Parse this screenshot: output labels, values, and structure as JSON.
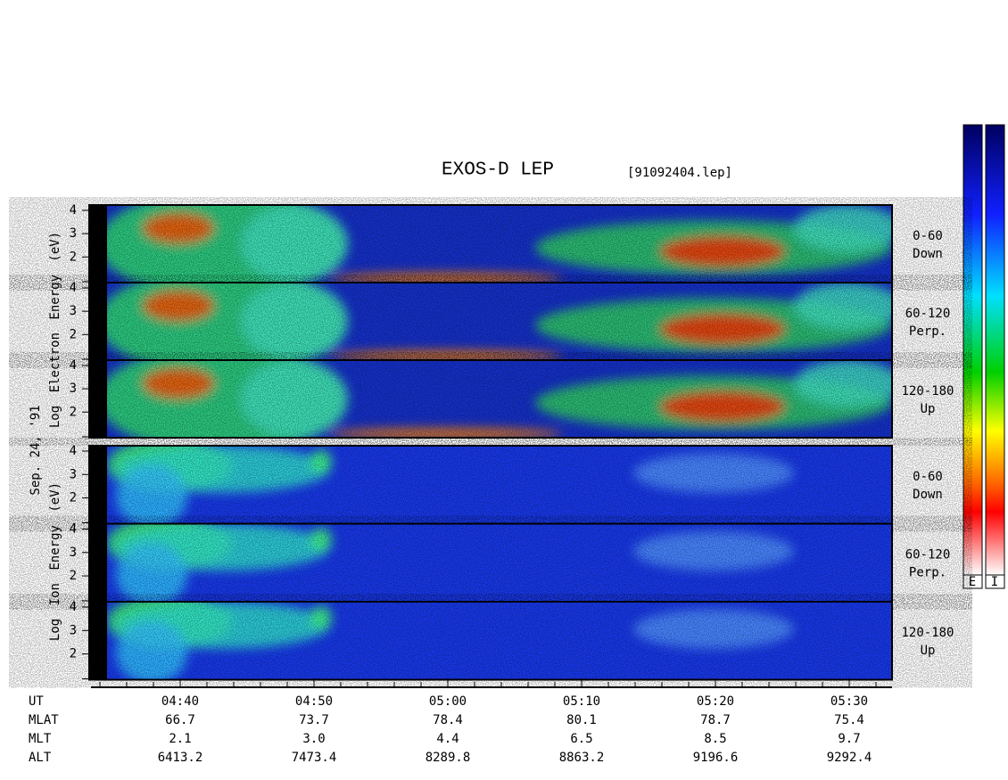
{
  "title": "EXOS-D LEP",
  "file_id": "[91092404.lep]",
  "date": "Sep. 24, '91",
  "y_ticks": [
    "2",
    "3",
    "4"
  ],
  "electron": {
    "axis_label": "Log Electron Energy (eV)",
    "panels": [
      {
        "pitch": "0-60",
        "direction": "Down"
      },
      {
        "pitch": "60-120",
        "direction": "Perp."
      },
      {
        "pitch": "120-180",
        "direction": "Up"
      }
    ]
  },
  "ion": {
    "axis_label": "Log Ion Energy (eV)",
    "panels": [
      {
        "pitch": "0-60",
        "direction": "Down"
      },
      {
        "pitch": "60-120",
        "direction": "Perp."
      },
      {
        "pitch": "120-180",
        "direction": "Up"
      }
    ]
  },
  "x_axis": {
    "rows": [
      {
        "label": "UT",
        "values": [
          "04:40",
          "04:50",
          "05:00",
          "05:10",
          "05:20",
          "05:30"
        ]
      },
      {
        "label": "MLAT",
        "values": [
          "66.7",
          "73.7",
          "78.4",
          "80.1",
          "78.7",
          "75.4"
        ]
      },
      {
        "label": "MLT",
        "values": [
          "2.1",
          "3.0",
          "4.4",
          "6.5",
          "8.5",
          "9.7"
        ]
      },
      {
        "label": "ALT",
        "values": [
          "6413.2",
          "7473.4",
          "8289.8",
          "8863.2",
          "9196.6",
          "9292.4"
        ]
      }
    ]
  },
  "colorbar_labels": [
    "E",
    "I"
  ]
}
